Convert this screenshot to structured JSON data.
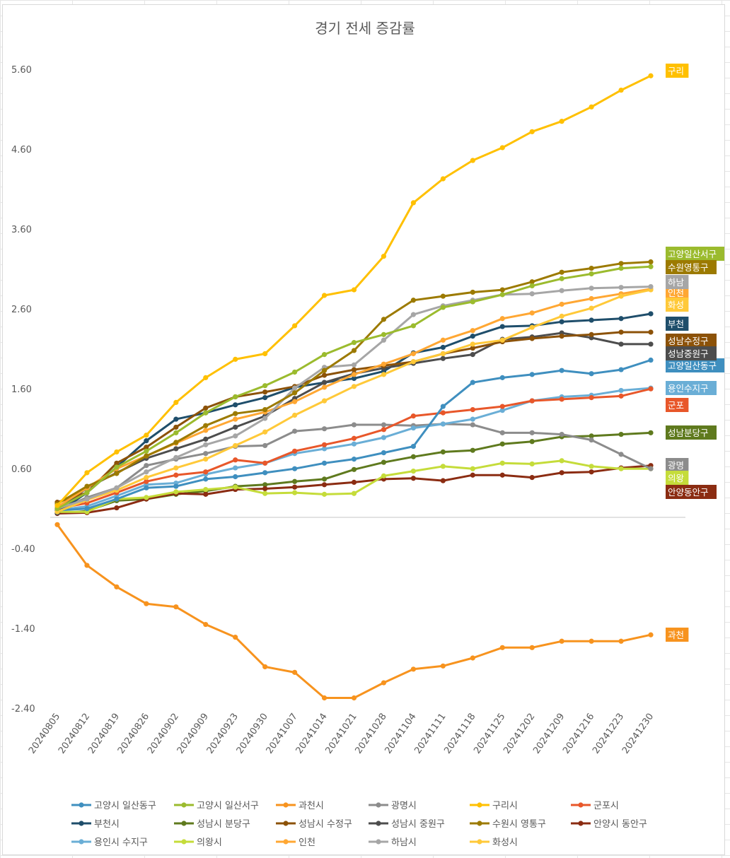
{
  "chart_data": {
    "type": "line",
    "title": "경기 전세 증감률",
    "xlabel": "",
    "ylabel": "",
    "ylim": [
      -2.4,
      5.6
    ],
    "yticks": [
      5.6,
      4.6,
      3.6,
      2.6,
      1.6,
      0.6,
      -0.4,
      -1.4,
      -2.4
    ],
    "ytick_labels": [
      "5.60",
      "4.60",
      "3.60",
      "2.60",
      "1.60",
      "0.60",
      "-0.40",
      "-1.40",
      "-2.40"
    ],
    "grid": false,
    "legend_position": "bottom",
    "x": [
      "20240805",
      "20240812",
      "20240819",
      "20240826",
      "20240902",
      "20240909",
      "20240923",
      "20240930",
      "20241007",
      "20241014",
      "20241021",
      "20241028",
      "20241104",
      "20241111",
      "20241118",
      "20241125",
      "20241202",
      "20241209",
      "20241216",
      "20241223",
      "20241230"
    ],
    "series": [
      {
        "name": "고양시 일산동구",
        "label": "고양일산동구",
        "color": "#3f8fbf",
        "values": [
          0.08,
          0.1,
          0.22,
          0.36,
          0.38,
          0.47,
          0.5,
          0.55,
          0.6,
          0.67,
          0.72,
          0.8,
          0.88,
          1.38,
          1.68,
          1.74,
          1.78,
          1.83,
          1.79,
          1.84,
          1.96
        ]
      },
      {
        "name": "고양시 일산서구",
        "label": "고양일산서구",
        "color": "#9bbb2e",
        "values": [
          0.1,
          0.3,
          0.62,
          0.82,
          1.05,
          1.3,
          1.5,
          1.64,
          1.81,
          2.03,
          2.18,
          2.28,
          2.39,
          2.62,
          2.69,
          2.78,
          2.89,
          2.98,
          3.04,
          3.11,
          3.13
        ]
      },
      {
        "name": "과천시",
        "label": "과천",
        "color": "#f7931e",
        "values": [
          -0.1,
          -0.61,
          -0.88,
          -1.09,
          -1.13,
          -1.35,
          -1.51,
          -1.88,
          -1.95,
          -2.27,
          -2.27,
          -2.08,
          -1.91,
          -1.87,
          -1.77,
          -1.64,
          -1.64,
          -1.56,
          -1.56,
          -1.56,
          -1.48
        ]
      },
      {
        "name": "광명시",
        "label": "광명",
        "color": "#8c8c8c",
        "values": [
          0.08,
          0.24,
          0.36,
          0.64,
          0.72,
          0.79,
          0.88,
          0.89,
          1.07,
          1.1,
          1.15,
          1.15,
          1.14,
          1.16,
          1.15,
          1.05,
          1.05,
          1.03,
          0.96,
          0.78,
          0.6
        ]
      },
      {
        "name": "구리시",
        "label": "구리",
        "color": "#ffc000",
        "values": [
          0.14,
          0.55,
          0.81,
          1.02,
          1.43,
          1.74,
          1.97,
          2.04,
          2.39,
          2.77,
          2.84,
          3.26,
          3.93,
          4.23,
          4.46,
          4.62,
          4.82,
          4.95,
          5.13,
          5.34,
          5.52
        ]
      },
      {
        "name": "군포시",
        "label": "군포",
        "color": "#e8572a",
        "values": [
          0.1,
          0.17,
          0.3,
          0.44,
          0.52,
          0.56,
          0.71,
          0.67,
          0.82,
          0.9,
          0.98,
          1.09,
          1.26,
          1.3,
          1.34,
          1.38,
          1.45,
          1.47,
          1.49,
          1.51,
          1.6
        ]
      },
      {
        "name": "부천시",
        "label": "부천",
        "color": "#1f4e6b",
        "values": [
          0.05,
          0.3,
          0.62,
          0.95,
          1.22,
          1.3,
          1.4,
          1.49,
          1.62,
          1.68,
          1.73,
          1.82,
          2.05,
          2.12,
          2.26,
          2.38,
          2.39,
          2.44,
          2.46,
          2.48,
          2.54
        ]
      },
      {
        "name": "성남시 분당구",
        "label": "성남분당구",
        "color": "#5f7a1e",
        "values": [
          0.04,
          0.07,
          0.2,
          0.22,
          0.28,
          0.32,
          0.38,
          0.4,
          0.44,
          0.47,
          0.59,
          0.68,
          0.75,
          0.81,
          0.83,
          0.91,
          0.94,
          1.0,
          1.01,
          1.03,
          1.05
        ]
      },
      {
        "name": "성남시 수정구",
        "label": "성남수정구",
        "color": "#8c5208",
        "values": [
          0.18,
          0.3,
          0.67,
          0.87,
          1.12,
          1.36,
          1.5,
          1.56,
          1.63,
          1.77,
          1.84,
          1.89,
          1.94,
          2.04,
          2.11,
          2.19,
          2.23,
          2.26,
          2.28,
          2.31,
          2.31
        ]
      },
      {
        "name": "성남시 중원구",
        "label": "성남중원구",
        "color": "#4d4d4d",
        "values": [
          0.08,
          0.36,
          0.55,
          0.73,
          0.85,
          0.97,
          1.12,
          1.26,
          1.48,
          1.68,
          1.79,
          1.86,
          1.92,
          1.98,
          2.03,
          2.22,
          2.25,
          2.3,
          2.24,
          2.16,
          2.16
        ]
      },
      {
        "name": "수원시 영통구",
        "label": "수원영통구",
        "color": "#9c7a00",
        "values": [
          0.16,
          0.38,
          0.54,
          0.76,
          0.93,
          1.14,
          1.29,
          1.34,
          1.55,
          1.83,
          2.08,
          2.47,
          2.71,
          2.76,
          2.81,
          2.84,
          2.94,
          3.06,
          3.11,
          3.17,
          3.19
        ]
      },
      {
        "name": "안양시 동안구",
        "label": "안양동안구",
        "color": "#8b2c12",
        "values": [
          0.04,
          0.05,
          0.11,
          0.22,
          0.29,
          0.28,
          0.34,
          0.35,
          0.37,
          0.4,
          0.43,
          0.47,
          0.48,
          0.45,
          0.52,
          0.52,
          0.49,
          0.55,
          0.56,
          0.61,
          0.64
        ]
      },
      {
        "name": "용인시 수지구",
        "label": "용인수지구",
        "color": "#6aaed6",
        "values": [
          0.08,
          0.13,
          0.26,
          0.4,
          0.42,
          0.53,
          0.61,
          0.67,
          0.79,
          0.85,
          0.91,
          0.99,
          1.11,
          1.16,
          1.22,
          1.33,
          1.45,
          1.5,
          1.52,
          1.58,
          1.61
        ]
      },
      {
        "name": "의왕시",
        "label": "의왕",
        "color": "#c5dc3a",
        "values": [
          0.06,
          0.06,
          0.22,
          0.24,
          0.31,
          0.34,
          0.37,
          0.29,
          0.3,
          0.28,
          0.29,
          0.51,
          0.57,
          0.63,
          0.6,
          0.67,
          0.66,
          0.7,
          0.63,
          0.6,
          0.6
        ]
      },
      {
        "name": "인천",
        "label": "인천",
        "color": "#ffa733",
        "values": [
          0.12,
          0.36,
          0.6,
          0.76,
          0.92,
          1.08,
          1.22,
          1.31,
          1.44,
          1.62,
          1.78,
          1.91,
          2.04,
          2.21,
          2.33,
          2.48,
          2.55,
          2.66,
          2.73,
          2.79,
          2.85
        ]
      },
      {
        "name": "하남시",
        "label": "하남",
        "color": "#a6a6a6",
        "values": [
          0.1,
          0.22,
          0.36,
          0.56,
          0.74,
          0.9,
          1.01,
          1.23,
          1.61,
          1.87,
          1.9,
          2.21,
          2.53,
          2.64,
          2.71,
          2.78,
          2.79,
          2.83,
          2.86,
          2.87,
          2.88
        ]
      },
      {
        "name": "화성시",
        "label": "화성",
        "color": "#ffc939",
        "values": [
          0.06,
          0.21,
          0.33,
          0.49,
          0.61,
          0.72,
          0.89,
          1.06,
          1.27,
          1.45,
          1.63,
          1.78,
          1.94,
          2.04,
          2.16,
          2.21,
          2.37,
          2.51,
          2.61,
          2.76,
          2.84
        ]
      }
    ]
  }
}
